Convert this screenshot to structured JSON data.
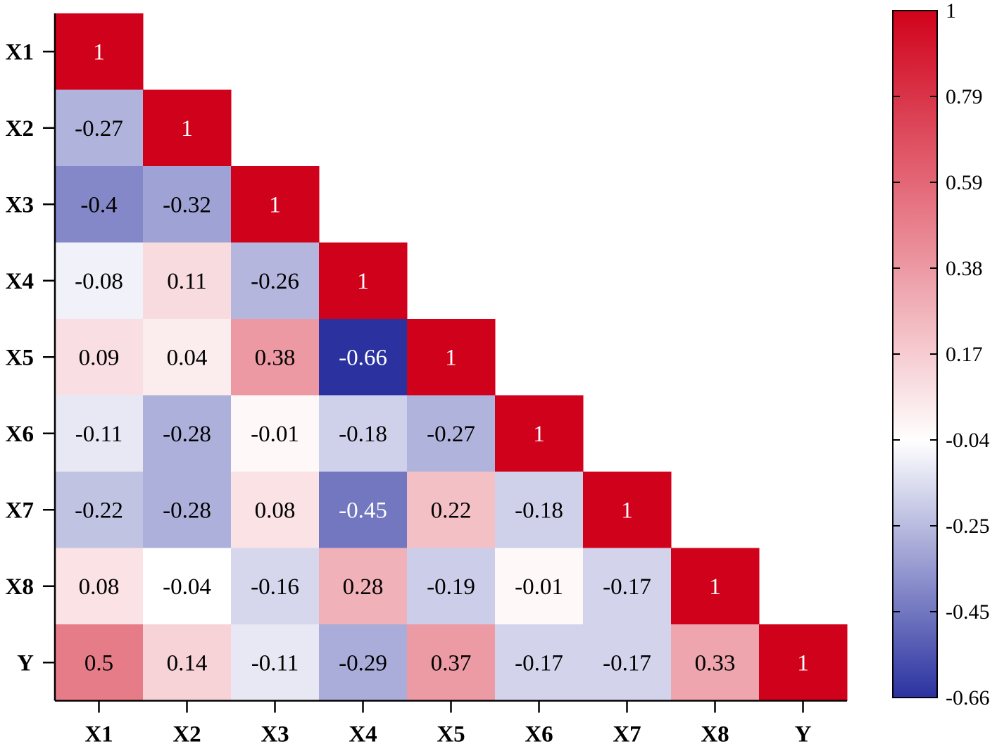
{
  "chart_data": {
    "type": "heatmap",
    "title": "",
    "variables": [
      "X1",
      "X2",
      "X3",
      "X4",
      "X5",
      "X6",
      "X7",
      "X8",
      "Y"
    ],
    "lower_triangle": true,
    "matrix": [
      [
        1
      ],
      [
        -0.27,
        1
      ],
      [
        -0.4,
        -0.32,
        1
      ],
      [
        -0.08,
        0.11,
        -0.26,
        1
      ],
      [
        0.09,
        0.04,
        0.38,
        -0.66,
        1
      ],
      [
        -0.11,
        -0.28,
        -0.01,
        -0.18,
        -0.27,
        1
      ],
      [
        -0.22,
        -0.28,
        0.08,
        -0.45,
        0.22,
        -0.18,
        1
      ],
      [
        0.08,
        -0.04,
        -0.16,
        0.28,
        -0.19,
        -0.01,
        -0.17,
        1
      ],
      [
        0.5,
        0.14,
        -0.11,
        -0.29,
        0.37,
        -0.17,
        -0.17,
        0.33,
        1
      ]
    ],
    "colorbar": {
      "min": -0.66,
      "mid": -0.04,
      "max": 1,
      "ticks": [
        "1",
        "0.79",
        "0.59",
        "0.38",
        "0.17",
        "-0.04",
        "-0.25",
        "-0.45",
        "-0.66"
      ],
      "colors": {
        "low": "#2b32a0",
        "mid": "#ffffff",
        "high": "#d0021b"
      }
    }
  }
}
